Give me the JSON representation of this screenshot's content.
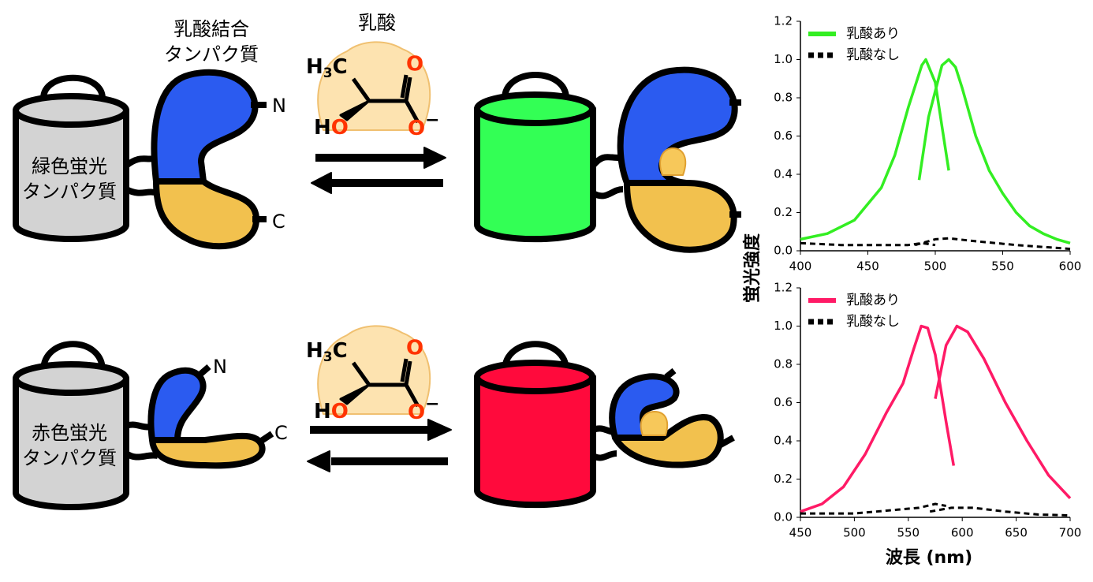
{
  "diagram": {
    "protein_label": [
      "乳酸結合",
      "タンパク質"
    ],
    "lactate_label": "乳酸",
    "n_terminus": "N",
    "c_terminus": "C",
    "green_fp": [
      "緑色蛍光",
      "タンパク質"
    ],
    "red_fp": [
      "赤色蛍光",
      "タンパク質"
    ],
    "molecule": {
      "methyl": [
        "H",
        "3",
        "C"
      ],
      "carbonyl_o": "O",
      "hydroxyl": [
        "H",
        "O"
      ],
      "carboxylate": [
        "O",
        "−"
      ]
    }
  },
  "chart_data": [
    {
      "type": "line",
      "ylabel": "蛍光強度",
      "xlim": [
        400,
        600
      ],
      "xticks": [
        400,
        450,
        500,
        550,
        600
      ],
      "ylim": [
        0,
        1.2
      ],
      "yticks": [
        {
          "value": 0,
          "label": "0.0"
        },
        {
          "value": 0.2,
          "label": "0.2"
        },
        {
          "value": 0.4,
          "label": "0.4"
        },
        {
          "value": 0.6,
          "label": "0.6"
        },
        {
          "value": 0.8,
          "label": "0.8"
        },
        {
          "value": 1,
          "label": "1.0"
        },
        {
          "value": 1.2,
          "label": "1.2"
        }
      ],
      "legend": "upper left",
      "series": [
        {
          "name": "乳酸あり",
          "color": "#33ee22",
          "dash": false,
          "x": [
            400,
            420,
            440,
            460,
            470,
            480,
            490,
            493,
            500,
            505,
            510,
            null,
            488,
            495,
            505,
            510,
            515,
            520,
            530,
            540,
            550,
            560,
            570,
            580,
            590,
            600
          ],
          "values": [
            0.06,
            0.09,
            0.16,
            0.33,
            0.5,
            0.75,
            0.97,
            1.0,
            0.88,
            0.65,
            0.42,
            null,
            0.37,
            0.7,
            0.97,
            1.0,
            0.96,
            0.85,
            0.6,
            0.42,
            0.3,
            0.2,
            0.13,
            0.09,
            0.06,
            0.04
          ]
        },
        {
          "name": "乳酸なし",
          "color": "#000000",
          "dash": true,
          "x": [
            400,
            430,
            460,
            480,
            490,
            500,
            null,
            485,
            500,
            510,
            530,
            560,
            600
          ],
          "values": [
            0.04,
            0.03,
            0.03,
            0.03,
            0.04,
            0.03,
            null,
            0.03,
            0.06,
            0.065,
            0.05,
            0.03,
            0.01
          ]
        }
      ]
    },
    {
      "type": "line",
      "xlabel": "波長 (nm)",
      "xlim": [
        450,
        700
      ],
      "xticks": [
        450,
        500,
        550,
        600,
        650,
        700
      ],
      "ylim": [
        0,
        1.2
      ],
      "yticks": [
        {
          "value": 0,
          "label": "0.0"
        },
        {
          "value": 0.2,
          "label": "0.2"
        },
        {
          "value": 0.4,
          "label": "0.4"
        },
        {
          "value": 0.6,
          "label": "0.6"
        },
        {
          "value": 0.8,
          "label": "0.8"
        },
        {
          "value": 1,
          "label": "1.0"
        },
        {
          "value": 1.2,
          "label": "1.2"
        }
      ],
      "legend": "upper left",
      "series": [
        {
          "name": "乳酸あり",
          "color": "#ff1a66",
          "dash": false,
          "x": [
            450,
            470,
            490,
            510,
            530,
            545,
            555,
            562,
            568,
            575,
            585,
            592,
            null,
            575,
            585,
            595,
            605,
            620,
            640,
            660,
            680,
            700
          ],
          "values": [
            0.03,
            0.07,
            0.16,
            0.33,
            0.55,
            0.7,
            0.88,
            1.0,
            0.99,
            0.85,
            0.5,
            0.27,
            null,
            0.62,
            0.9,
            1.0,
            0.97,
            0.83,
            0.6,
            0.4,
            0.22,
            0.1
          ]
        },
        {
          "name": "乳酸なし",
          "color": "#000000",
          "dash": true,
          "x": [
            450,
            500,
            540,
            560,
            575,
            585,
            null,
            570,
            590,
            610,
            640,
            670,
            700
          ],
          "values": [
            0.02,
            0.02,
            0.04,
            0.05,
            0.07,
            0.06,
            null,
            0.03,
            0.05,
            0.05,
            0.03,
            0.015,
            0.01
          ]
        }
      ]
    }
  ]
}
